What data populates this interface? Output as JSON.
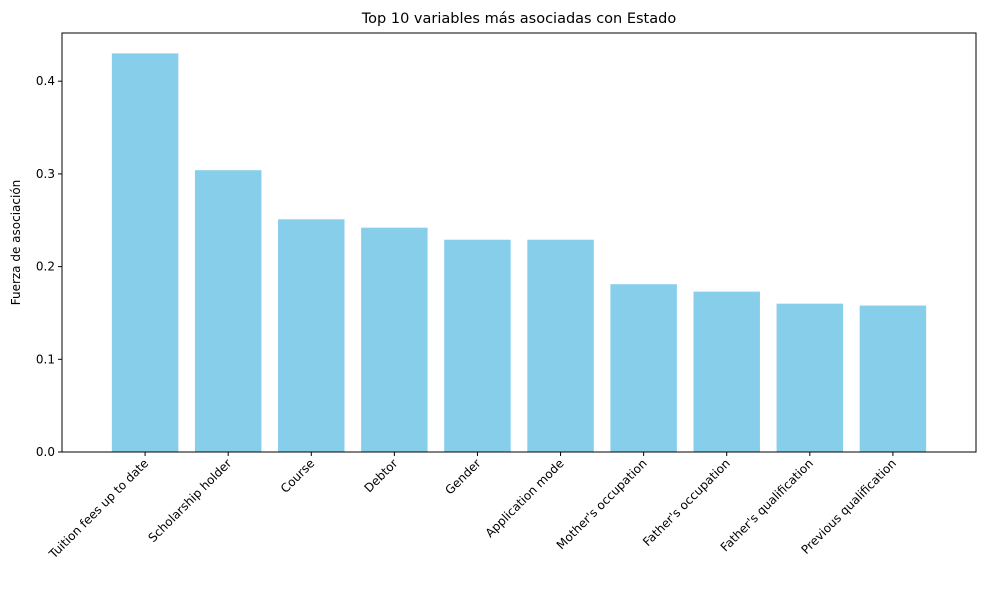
{
  "chart_data": {
    "type": "bar",
    "title": "Top 10 variables más asociadas con Estado",
    "xlabel": "",
    "ylabel": "Fuerza de asociación",
    "categories": [
      "Tuition fees up to date",
      "Scholarship holder",
      "Course",
      "Debtor",
      "Gender",
      "Application mode",
      "Mother's occupation",
      "Father's occupation",
      "Father's qualification",
      "Previous qualification"
    ],
    "values": [
      0.43,
      0.304,
      0.251,
      0.242,
      0.229,
      0.229,
      0.181,
      0.173,
      0.16,
      0.158
    ],
    "ylim": [
      0,
      0.452
    ],
    "yticks": [
      0.0,
      0.1,
      0.2,
      0.3,
      0.4
    ],
    "ytick_labels": [
      "0.0",
      "0.1",
      "0.2",
      "0.3",
      "0.4"
    ],
    "grid": false,
    "bar_color": "#87CEEB"
  }
}
